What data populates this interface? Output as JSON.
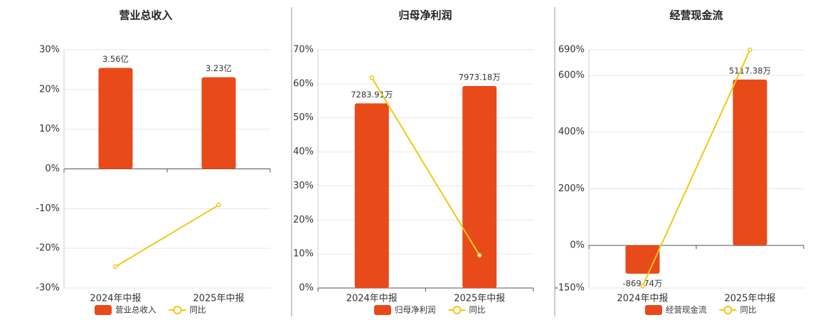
{
  "chart_data": [
    {
      "type": "bar",
      "title": "营业总收入",
      "categories": [
        "2024年中报",
        "2025年中报"
      ],
      "ylim": [
        -30,
        30
      ],
      "yticks": [
        {
          "value": -30,
          "label": "-30%"
        },
        {
          "value": -20,
          "label": "-20%"
        },
        {
          "value": -10,
          "label": "-10%"
        },
        {
          "value": 0,
          "label": "0%"
        },
        {
          "value": 10,
          "label": "10%"
        },
        {
          "value": 20,
          "label": "20%"
        },
        {
          "value": 30,
          "label": "30%"
        }
      ],
      "y2lim": [
        -4.2,
        4.2
      ],
      "grid": true,
      "series": [
        {
          "name": "营业总收入",
          "type": "bar",
          "axis": "y2",
          "color": "#e84a1a",
          "values": [
            3.56,
            3.23
          ],
          "value_labels": [
            "3.56亿",
            "3.23亿"
          ]
        },
        {
          "name": "同比",
          "type": "line",
          "color": "#f2c811",
          "values": [
            -24.6,
            -9.1
          ]
        }
      ]
    },
    {
      "type": "bar",
      "title": "归母净利润",
      "categories": [
        "2024年中报",
        "2025年中报"
      ],
      "ylim": [
        0,
        70
      ],
      "yticks": [
        {
          "value": 0,
          "label": "0%"
        },
        {
          "value": 10,
          "label": "10%"
        },
        {
          "value": 20,
          "label": "20%"
        },
        {
          "value": 30,
          "label": "30%"
        },
        {
          "value": 40,
          "label": "40%"
        },
        {
          "value": 50,
          "label": "50%"
        },
        {
          "value": 60,
          "label": "60%"
        },
        {
          "value": 70,
          "label": "70%"
        }
      ],
      "y2lim": [
        0,
        9400
      ],
      "grid": true,
      "series": [
        {
          "name": "归母净利润",
          "type": "bar",
          "axis": "y2",
          "color": "#e84a1a",
          "values": [
            7283.91,
            7973.18
          ],
          "value_labels": [
            "7283.91万",
            "7973.18万"
          ]
        },
        {
          "name": "同比",
          "type": "line",
          "color": "#f2c811",
          "values": [
            61.8,
            9.6
          ]
        }
      ]
    },
    {
      "type": "bar",
      "title": "经营现金流",
      "categories": [
        "2024年中报",
        "2025年中报"
      ],
      "ylim": [
        -150,
        690
      ],
      "yticks": [
        {
          "value": -150,
          "label": "-150%"
        },
        {
          "value": 0,
          "label": "0%"
        },
        {
          "value": 200,
          "label": "200%"
        },
        {
          "value": 400,
          "label": "400%"
        },
        {
          "value": 600,
          "label": "600%"
        },
        {
          "value": 690,
          "label": "690%"
        }
      ],
      "y2lim": [
        -1312,
        6036
      ],
      "grid": true,
      "series": [
        {
          "name": "经营现金流",
          "type": "bar",
          "axis": "y2",
          "color": "#e84a1a",
          "values": [
            -869.74,
            5117.38
          ],
          "value_labels": [
            "-869.74万",
            "5117.38万"
          ]
        },
        {
          "name": "同比",
          "type": "line",
          "color": "#f2c811",
          "values": [
            -143,
            690
          ]
        }
      ]
    }
  ]
}
